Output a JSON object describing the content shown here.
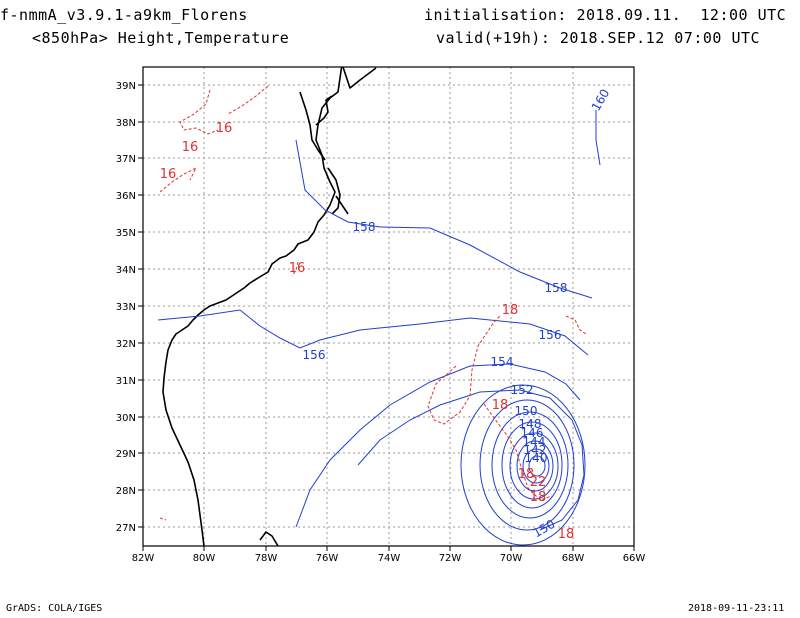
{
  "header": {
    "model": "f-nmmA_v3.9.1-a9km_Florens",
    "field": "<850hPa> Height,Temperature",
    "init": "initialisation: 2018.09.11.  12:00 UTC",
    "valid": "valid(+19h): 2018.SEP.12 07:00 UTC"
  },
  "footer": {
    "credit": "GrADS: COLA/IGES",
    "timestamp": "2018-09-11-23:11"
  },
  "axes": {
    "lon_labels": [
      "82W",
      "80W",
      "78W",
      "76W",
      "74W",
      "72W",
      "70W",
      "68W",
      "66W"
    ],
    "lat_labels": [
      "27N",
      "28N",
      "29N",
      "30N",
      "31N",
      "32N",
      "33N",
      "34N",
      "35N",
      "36N",
      "37N",
      "38N",
      "39N"
    ]
  },
  "contours": {
    "height_color": "#2040d0",
    "temp_color": "#e03030",
    "height_labels": [
      "160",
      "158",
      "158",
      "156",
      "156",
      "154",
      "152",
      "150",
      "148",
      "146",
      "144",
      "142",
      "140",
      "150"
    ],
    "temp_labels": [
      "16",
      "16",
      "16",
      "16",
      "18",
      "18",
      "18",
      "22",
      "18",
      "18"
    ]
  }
}
